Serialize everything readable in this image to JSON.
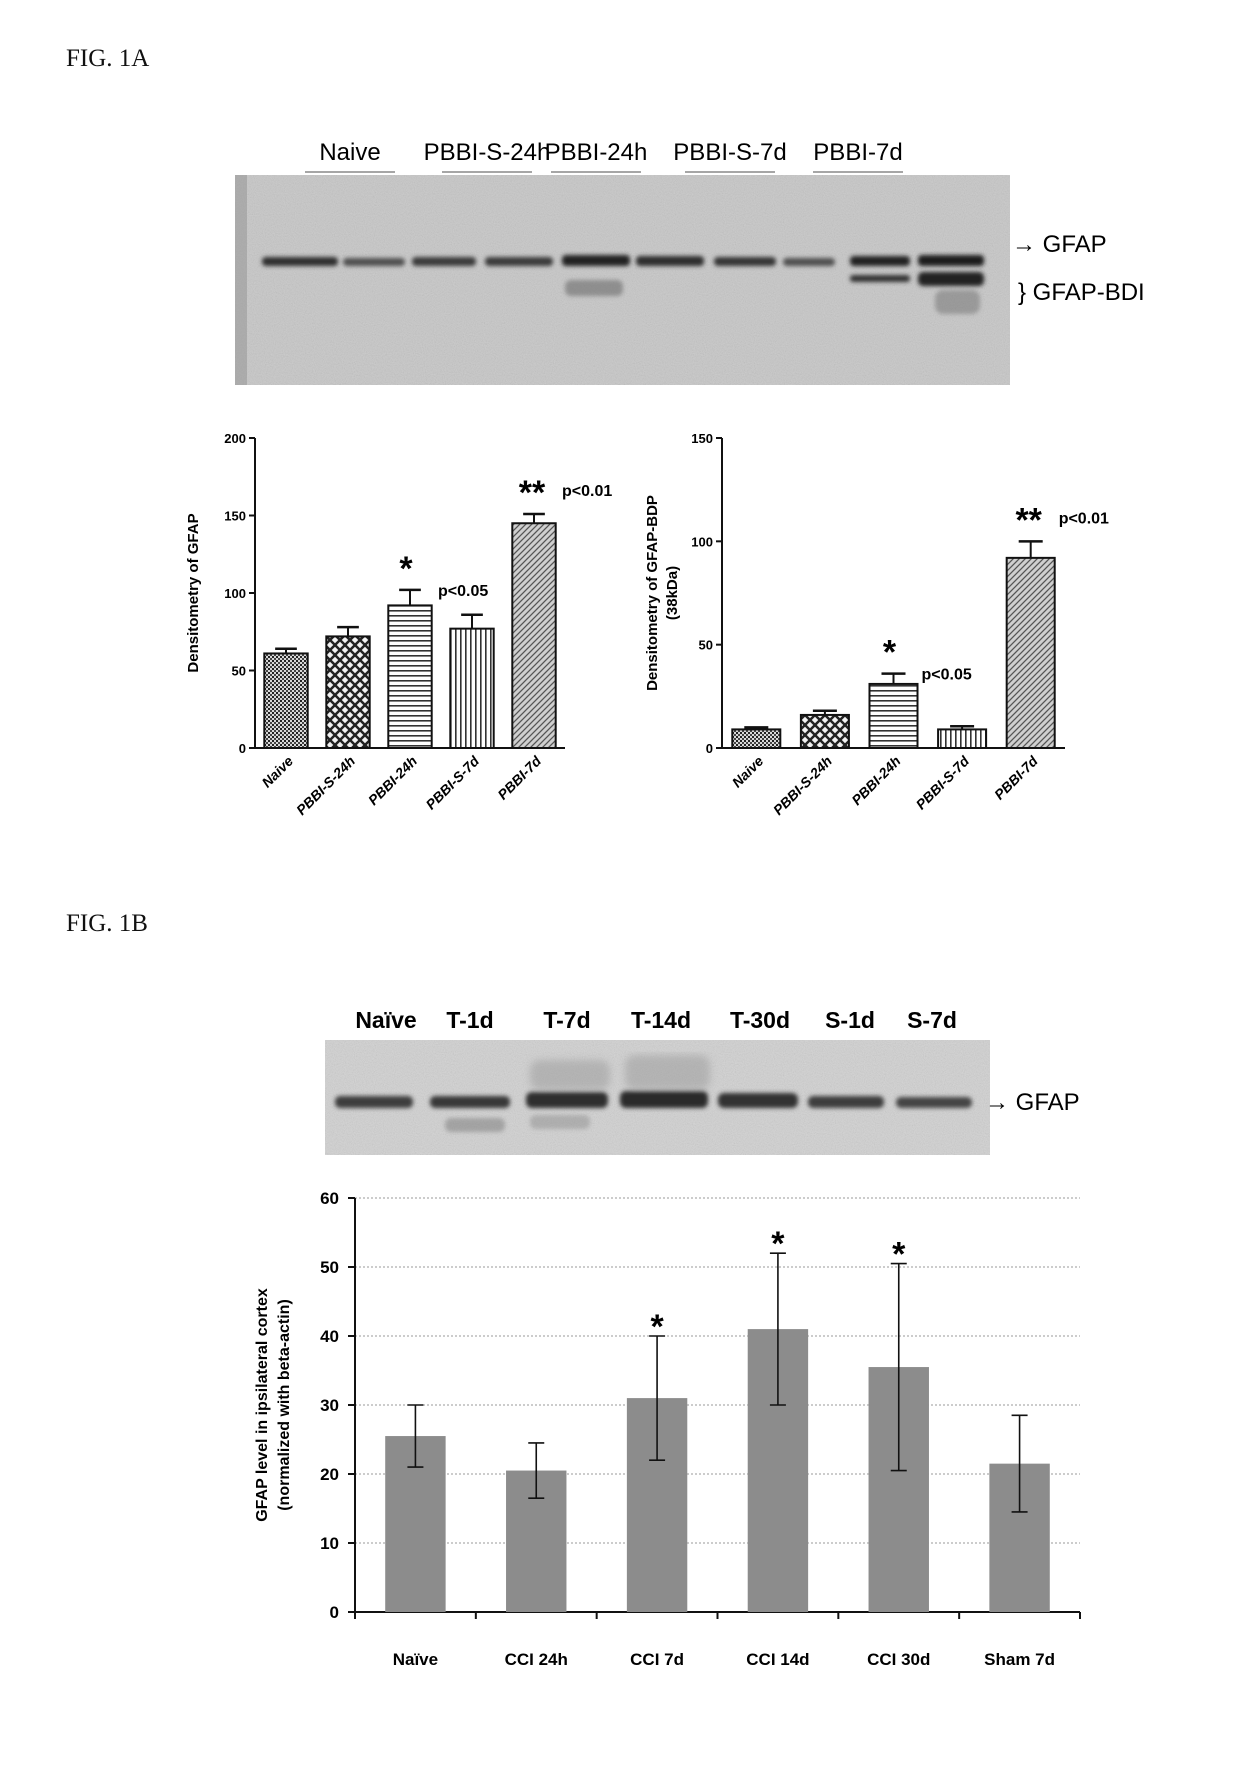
{
  "fig1a_label": "FIG. 1A",
  "fig1b_label": "FIG. 1B",
  "blot_a": {
    "lanes": [
      "Naive",
      "PBBI-S-24h",
      "PBBI-24h",
      "PBBI-S-7d",
      "PBBI-7d"
    ],
    "band_labels": [
      "→ GFAP",
      "} GFAP-BDI"
    ]
  },
  "blot_b": {
    "lanes": [
      "Naïve",
      "T-1d",
      "T-7d",
      "T-14d",
      "T-30d",
      "S-1d",
      "S-7d"
    ],
    "band_label": "→ GFAP"
  },
  "chart_data": [
    {
      "type": "bar",
      "ylabel": "Densitometry of GFAP",
      "categories": [
        "Naive",
        "PBBI-S-24h",
        "PBBI-24h",
        "PBBI-S-7d",
        "PBBI-7d"
      ],
      "values": [
        61,
        72,
        92,
        77,
        145
      ],
      "errors": [
        3,
        6,
        10,
        9,
        6
      ],
      "ylim": [
        0,
        200
      ],
      "yticks": [
        0,
        50,
        100,
        150,
        200
      ],
      "annotations": [
        {
          "category": "PBBI-24h",
          "star": "*",
          "text": "p<0.05"
        },
        {
          "category": "PBBI-7d",
          "star": "**",
          "text": "p<0.01"
        }
      ]
    },
    {
      "type": "bar",
      "ylabel": "Densitometry of GFAP-BDP",
      "ylabel2": "(38kDa)",
      "categories": [
        "Naive",
        "PBBI-S-24h",
        "PBBI-24h",
        "PBBI-S-7d",
        "PBBI-7d"
      ],
      "values": [
        9,
        16,
        31,
        9,
        92
      ],
      "errors": [
        1,
        2,
        5,
        1.5,
        8
      ],
      "ylim": [
        0,
        150
      ],
      "yticks": [
        0,
        50,
        100,
        150
      ],
      "annotations": [
        {
          "category": "PBBI-24h",
          "star": "*",
          "text": "p<0.05"
        },
        {
          "category": "PBBI-7d",
          "star": "**",
          "text": "p<0.01"
        }
      ]
    },
    {
      "type": "bar",
      "ylabel": "GFAP level in ipsilateral cortex",
      "ylabel2": "(normalized with beta-actin)",
      "categories": [
        "Naïve",
        "CCI 24h",
        "CCI 7d",
        "CCI 14d",
        "CCI 30d",
        "Sham 7d"
      ],
      "values": [
        25.5,
        20.5,
        31,
        41,
        35.5,
        21.5
      ],
      "errors": [
        4.5,
        4,
        9,
        11,
        15,
        7
      ],
      "ylim": [
        0,
        60
      ],
      "yticks": [
        0,
        10,
        20,
        30,
        40,
        50,
        60
      ],
      "grid": true,
      "annotations": [
        {
          "category": "CCI 7d",
          "star": "*",
          "text": ""
        },
        {
          "category": "CCI 14d",
          "star": "*",
          "text": ""
        },
        {
          "category": "CCI 30d",
          "star": "*",
          "text": ""
        }
      ],
      "color": "#8c8c8c"
    }
  ]
}
